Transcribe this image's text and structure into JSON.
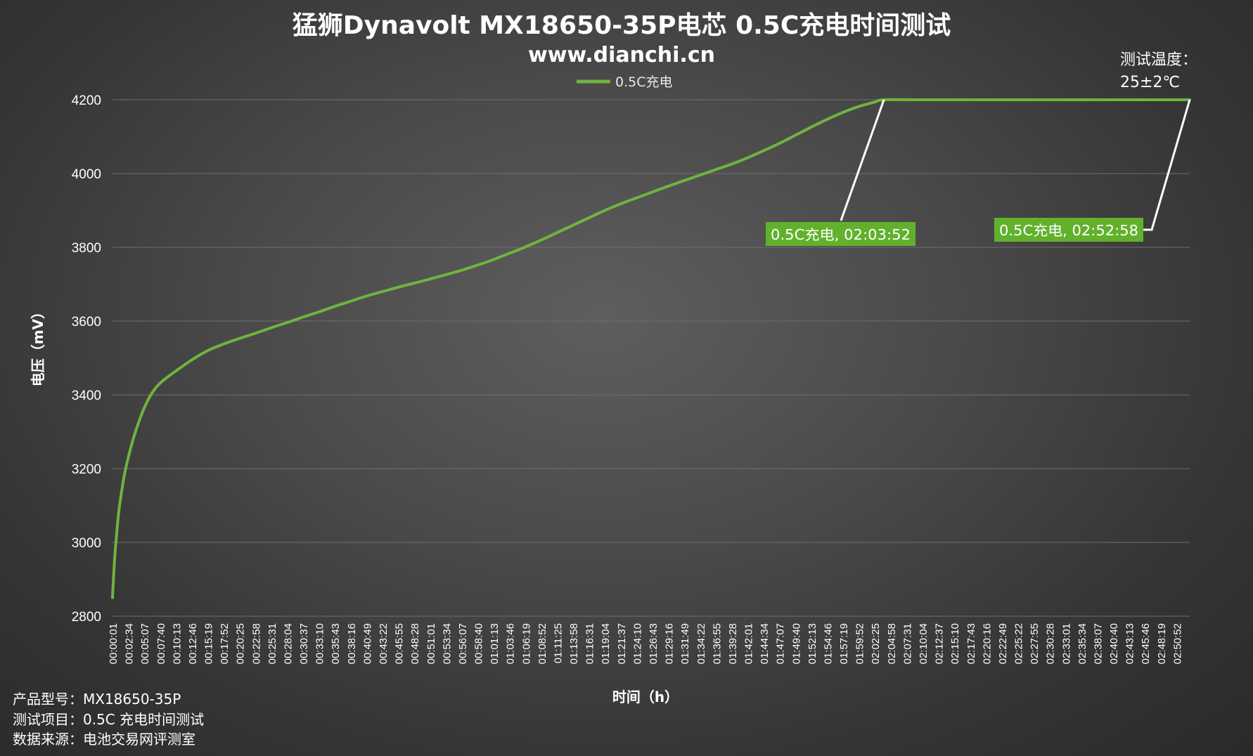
{
  "title": "猛狮Dynavolt MX18650-35P电芯 0.5C充电时间测试",
  "subtitle": "www.dianchi.cn",
  "test_temp": {
    "label": "测试温度：",
    "value": "25±2℃"
  },
  "footer": {
    "product": "产品型号：MX18650-35P",
    "item": "测试项目：0.5C 充电时间测试",
    "source": "数据来源：电池交易网评测室"
  },
  "colors": {
    "series": "#70b33f",
    "label_bg": "#62b12c",
    "grid": "#6f6f6f",
    "callout": "#ffffff"
  },
  "chart_data": {
    "type": "line",
    "title": "猛狮Dynavolt MX18650-35P电芯 0.5C充电时间测试",
    "xlabel": "时间（h）",
    "ylabel": "电压（mV）",
    "ylim": [
      2800,
      4200
    ],
    "yticks": [
      "2800",
      "3000",
      "3200",
      "3400",
      "3600",
      "3800",
      "4000",
      "4200"
    ],
    "xticks": [
      "00:00:01",
      "00:02:34",
      "00:05:07",
      "00:07:40",
      "00:10:13",
      "00:12:46",
      "00:15:19",
      "00:17:52",
      "00:20:25",
      "00:22:58",
      "00:25:31",
      "00:28:04",
      "00:30:37",
      "00:33:10",
      "00:35:43",
      "00:38:16",
      "00:40:49",
      "00:43:22",
      "00:45:55",
      "00:48:28",
      "00:51:01",
      "00:53:34",
      "00:56:07",
      "00:58:40",
      "01:01:13",
      "01:03:46",
      "01:06:19",
      "01:08:52",
      "01:11:25",
      "01:13:58",
      "01:16:31",
      "01:19:04",
      "01:21:37",
      "01:24:10",
      "01:26:43",
      "01:29:16",
      "01:31:49",
      "01:34:22",
      "01:36:55",
      "01:39:28",
      "01:42:01",
      "01:44:34",
      "01:47:07",
      "01:49:40",
      "01:52:13",
      "01:54:46",
      "01:57:19",
      "01:59:52",
      "02:02:25",
      "02:04:58",
      "02:07:31",
      "02:10:04",
      "02:12:37",
      "02:15:10",
      "02:17:43",
      "02:20:16",
      "02:22:49",
      "02:25:22",
      "02:27:55",
      "02:30:28",
      "02:33:01",
      "02:35:34",
      "02:38:07",
      "02:40:40",
      "02:43:13",
      "02:45:46",
      "02:48:19",
      "02:50:52"
    ],
    "grid": true,
    "legend_position": "top-center",
    "series": [
      {
        "name": "0.5C充电",
        "x": [
          "00:00:01",
          "00:00:20",
          "00:00:40",
          "00:01:00",
          "00:01:30",
          "00:02:00",
          "00:03:00",
          "00:04:00",
          "00:05:00",
          "00:06:00",
          "00:07:00",
          "00:08:00",
          "00:09:00",
          "00:10:13",
          "00:12:46",
          "00:15:19",
          "00:17:52",
          "00:20:25",
          "00:22:58",
          "00:25:31",
          "00:28:04",
          "00:30:37",
          "00:33:10",
          "00:35:43",
          "00:38:16",
          "00:40:49",
          "00:43:22",
          "00:45:55",
          "00:48:28",
          "00:51:01",
          "00:53:34",
          "00:56:07",
          "00:58:40",
          "01:01:13",
          "01:03:46",
          "01:06:19",
          "01:08:52",
          "01:11:25",
          "01:13:58",
          "01:16:31",
          "01:19:04",
          "01:21:37",
          "01:24:10",
          "01:26:43",
          "01:29:16",
          "01:31:49",
          "01:34:22",
          "01:36:55",
          "01:39:28",
          "01:42:01",
          "01:44:34",
          "01:47:07",
          "01:49:40",
          "01:52:13",
          "01:54:46",
          "01:57:19",
          "01:59:52",
          "02:02:25",
          "02:03:52",
          "02:10:04",
          "02:20:16",
          "02:30:28",
          "02:40:40",
          "02:50:52",
          "02:52:58"
        ],
        "y": [
          2850,
          2950,
          3020,
          3080,
          3140,
          3190,
          3260,
          3315,
          3360,
          3395,
          3420,
          3437,
          3450,
          3465,
          3495,
          3520,
          3538,
          3553,
          3567,
          3582,
          3596,
          3611,
          3625,
          3640,
          3654,
          3668,
          3680,
          3692,
          3703,
          3714,
          3726,
          3738,
          3752,
          3767,
          3784,
          3801,
          3820,
          3840,
          3860,
          3880,
          3900,
          3918,
          3934,
          3950,
          3966,
          3981,
          3996,
          4011,
          4026,
          4043,
          4062,
          4082,
          4104,
          4126,
          4147,
          4166,
          4182,
          4194,
          4200,
          4200,
          4200,
          4200,
          4200,
          4200,
          4200
        ]
      }
    ],
    "annotations": [
      {
        "label": "0.5C充电, 02:03:52",
        "x": "02:03:52",
        "y": 4200
      },
      {
        "label": "0.5C充电, 02:52:58",
        "x": "02:52:58",
        "y": 4200
      }
    ]
  }
}
